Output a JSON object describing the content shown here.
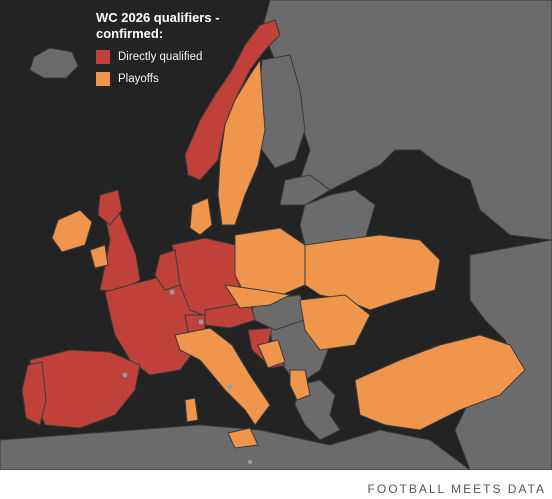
{
  "legend": {
    "title": "WC 2026 qualifiers - confirmed:",
    "items": [
      {
        "label": "Directly qualified",
        "color": "#c0403a"
      },
      {
        "label": "Playoffs",
        "color": "#f0954c"
      }
    ]
  },
  "footer": {
    "credit": "FOOTBALL MEETS DATA"
  },
  "colors": {
    "sea": "#232323",
    "land_other": "#6b6b6b",
    "border": "#3a3a3a",
    "directly_qualified": "#c0403a",
    "playoffs": "#f0954c"
  }
}
